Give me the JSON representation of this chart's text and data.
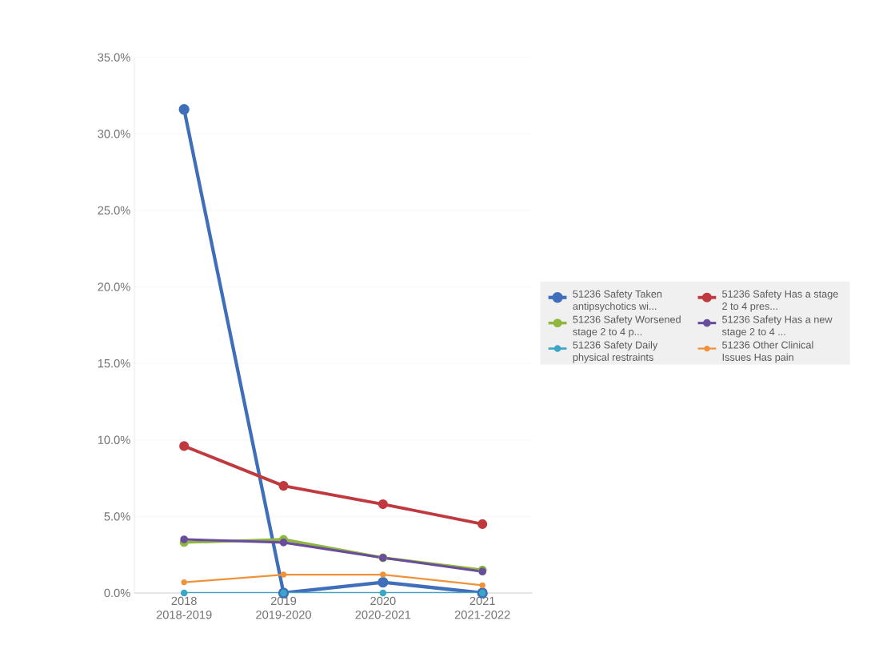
{
  "chart_data": {
    "type": "line",
    "categories": [
      "2018 2018-2019",
      "2019 2019-2020",
      "2020 2020-2021",
      "2021 2021-2022"
    ],
    "series": [
      {
        "name": "51236 Safety Taken antipsychotics wi...",
        "color": "#3f6fba",
        "values": [
          31.6,
          0,
          0.7,
          0
        ]
      },
      {
        "name": "51236 Safety Has a stage 2 to 4 pres...",
        "color": "#c0393f",
        "values": [
          9.6,
          7.0,
          5.8,
          4.5
        ]
      },
      {
        "name": "51236 Safety Worsened stage 2 to 4 p...",
        "color": "#8fb73e",
        "values": [
          3.3,
          3.5,
          2.3,
          1.5
        ]
      },
      {
        "name": "51236 Safety Has a new stage 2 to 4 ...",
        "color": "#6a4c9c",
        "values": [
          3.5,
          3.3,
          2.3,
          1.4
        ]
      },
      {
        "name": "51236 Safety Daily physical restraints",
        "color": "#3aa6c8",
        "values": [
          0,
          0,
          0,
          0
        ]
      },
      {
        "name": "51236 Other Clinical Issues Has pain",
        "color": "#f0923b",
        "values": [
          0.7,
          1.2,
          1.2,
          0.5
        ]
      }
    ],
    "ylim": [
      0,
      35
    ],
    "yticks": [
      {
        "value": 0,
        "label": "0.0%"
      },
      {
        "value": 5,
        "label": "5.0%"
      },
      {
        "value": 10,
        "label": "10.0%"
      },
      {
        "value": 15,
        "label": "15.0%"
      },
      {
        "value": 20,
        "label": "20.0%"
      },
      {
        "value": 25,
        "label": "25.0%"
      },
      {
        "value": 30,
        "label": "30.0%"
      },
      {
        "value": 35,
        "label": "35.0%"
      }
    ],
    "grid": "y",
    "legend": "right",
    "marker": "circle",
    "line_style": "solid"
  }
}
